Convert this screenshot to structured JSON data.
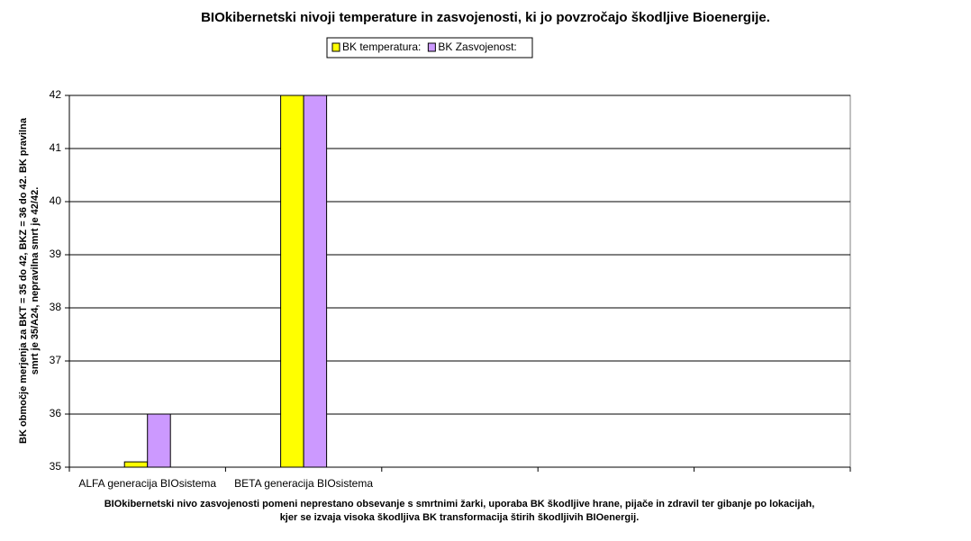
{
  "chart_data": {
    "type": "bar",
    "title": "BIOkibernetski nivoji temperature in zasvojenosti, ki jo povzročajo škodljive Bioenergije.",
    "ylabel": [
      "BK območje merjenja za BKT = 35 do 42, BKZ = 36 do 42. BK pravilna",
      "smrt je 35/A24, nepravilna smrt je 42/42."
    ],
    "xlabel": [
      "BIOkibernetski nivo zasvojenosti pomeni neprestano obsevanje s smrtnimi žarki, uporaba BK škodljive hrane, pijače in zdravil ter gibanje po lokacijah,",
      "kjer se izvaja visoka škodljiva BK transformacija štirih škodljivih BIOenergij."
    ],
    "categories": [
      "ALFA generacija BIOsistema",
      "BETA generacija BIOsistema",
      null,
      null,
      null
    ],
    "series": [
      {
        "name": "BK temperatura:",
        "color": "#ffff00",
        "values": [
          35.1,
          42,
          null,
          null,
          null
        ]
      },
      {
        "name": "BK Zasvojenost:",
        "color": "#cc99ff",
        "values": [
          36,
          42,
          null,
          null,
          null
        ]
      }
    ],
    "ylim": [
      35,
      42
    ],
    "yticks": [
      35,
      36,
      37,
      38,
      39,
      40,
      41,
      42
    ],
    "grid": true
  }
}
